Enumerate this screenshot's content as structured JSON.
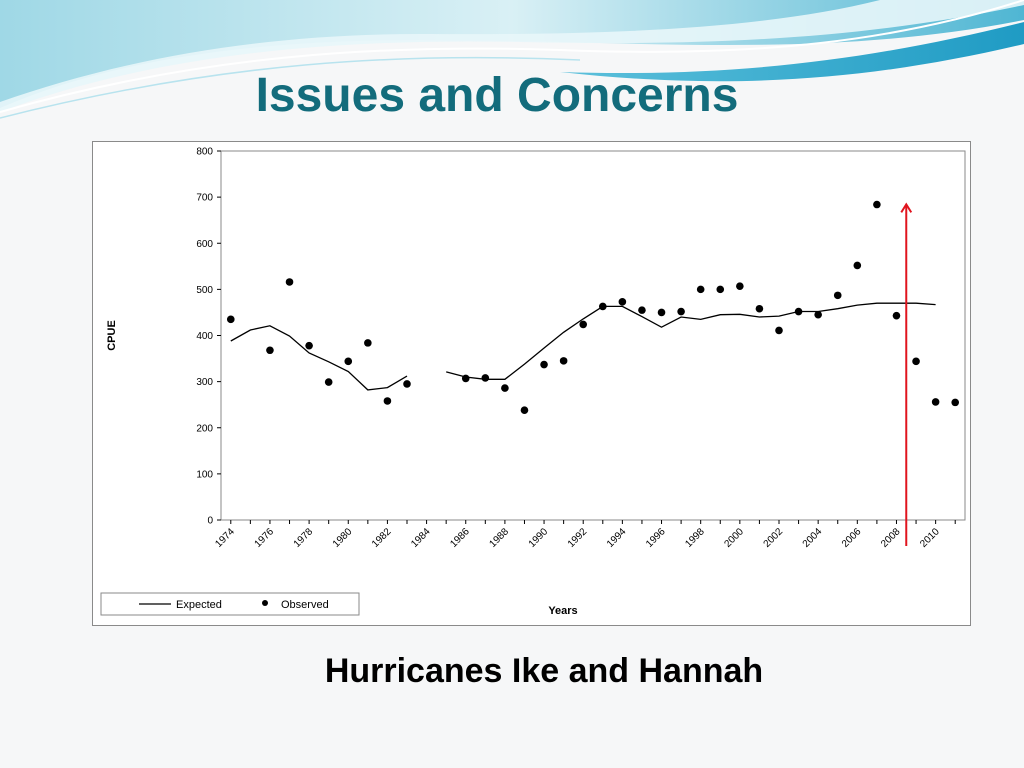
{
  "slide": {
    "title": "Issues and Concerns",
    "caption": "Hurricanes Ike and Hannah"
  },
  "colors": {
    "title": "#136c7c",
    "annotation_arrow": "#e0141e",
    "series": "#000000"
  },
  "chart_data": {
    "type": "line",
    "title": "",
    "xlabel": "Years",
    "ylabel": "CPUE",
    "xlim": [
      1973.5,
      2011.5
    ],
    "ylim": [
      0,
      800
    ],
    "yticks": [
      0,
      100,
      200,
      300,
      400,
      500,
      600,
      700,
      800
    ],
    "xtick_labels": [
      "1974",
      "1976",
      "1978",
      "1980",
      "1982",
      "1984",
      "1986",
      "1988",
      "1990",
      "1992",
      "1994",
      "1996",
      "1998",
      "2000",
      "2002",
      "2004",
      "2006",
      "2008",
      "2010"
    ],
    "grid": false,
    "legend_position": "bottom-left",
    "legend": [
      "Expected",
      "Observed"
    ],
    "series": [
      {
        "name": "Expected",
        "style": "line",
        "segments": [
          [
            [
              1974,
              388
            ],
            [
              1975,
              412
            ],
            [
              1976,
              421
            ],
            [
              1977,
              399
            ],
            [
              1978,
              362
            ],
            [
              1979,
              343
            ],
            [
              1980,
              322
            ],
            [
              1981,
              282
            ],
            [
              1982,
              287
            ],
            [
              1983,
              312
            ]
          ],
          [
            [
              1985,
              321
            ],
            [
              1986,
              310
            ],
            [
              1987,
              305
            ],
            [
              1988,
              305
            ],
            [
              1989,
              338
            ],
            [
              1990,
              373
            ],
            [
              1991,
              407
            ],
            [
              1992,
              436
            ],
            [
              1993,
              463
            ],
            [
              1994,
              463
            ],
            [
              1995,
              441
            ],
            [
              1996,
              418
            ],
            [
              1997,
              440
            ],
            [
              1998,
              435
            ],
            [
              1999,
              445
            ],
            [
              2000,
              446
            ],
            [
              2001,
              440
            ],
            [
              2002,
              442
            ],
            [
              2003,
              452
            ],
            [
              2004,
              452
            ],
            [
              2005,
              458
            ],
            [
              2006,
              466
            ],
            [
              2007,
              470
            ],
            [
              2008,
              470
            ],
            [
              2009,
              470
            ],
            [
              2010,
              467
            ]
          ]
        ]
      },
      {
        "name": "Observed",
        "style": "points",
        "points": [
          [
            1974,
            435
          ],
          [
            1976,
            368
          ],
          [
            1977,
            516
          ],
          [
            1978,
            378
          ],
          [
            1979,
            299
          ],
          [
            1980,
            344
          ],
          [
            1981,
            384
          ],
          [
            1982,
            258
          ],
          [
            1983,
            295
          ],
          [
            1986,
            307
          ],
          [
            1987,
            308
          ],
          [
            1988,
            286
          ],
          [
            1989,
            238
          ],
          [
            1990,
            337
          ],
          [
            1991,
            345
          ],
          [
            1992,
            424
          ],
          [
            1993,
            463
          ],
          [
            1994,
            473
          ],
          [
            1995,
            455
          ],
          [
            1996,
            450
          ],
          [
            1997,
            452
          ],
          [
            1998,
            500
          ],
          [
            1999,
            500
          ],
          [
            2000,
            507
          ],
          [
            2001,
            458
          ],
          [
            2002,
            411
          ],
          [
            2003,
            452
          ],
          [
            2004,
            445
          ],
          [
            2005,
            487
          ],
          [
            2006,
            552
          ],
          [
            2007,
            684
          ],
          [
            2008,
            443
          ],
          [
            2009,
            344
          ],
          [
            2010,
            256
          ],
          [
            2011,
            255
          ]
        ]
      }
    ],
    "annotations": [
      {
        "type": "arrow",
        "x": 2008.5,
        "y_from": 0,
        "y_to": 680
      }
    ]
  }
}
